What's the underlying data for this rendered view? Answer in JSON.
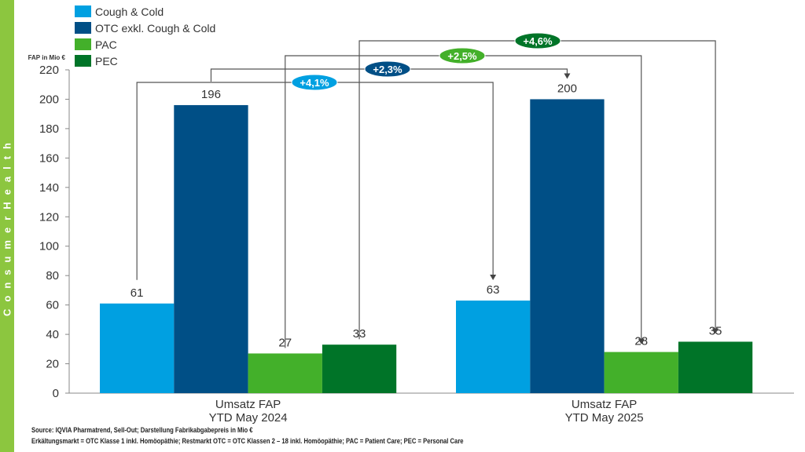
{
  "sidebar": {
    "label": "ConsumerHealth",
    "color": "#8cc63f"
  },
  "chart_data": {
    "type": "bar",
    "ylabel": "FAP in Mio €",
    "ylim": [
      0,
      220
    ],
    "yticks": [
      0,
      20,
      40,
      60,
      80,
      100,
      120,
      140,
      160,
      180,
      200,
      220
    ],
    "categories": [
      "Umsatz FAP\nYTD May 2024",
      "Umsatz FAP\nYTD May 2025"
    ],
    "series": [
      {
        "name": "Cough & Cold",
        "color": "#00a0e1",
        "values": [
          61,
          63
        ]
      },
      {
        "name": "OTC exkl. Cough & Cold",
        "color": "#004f86",
        "values": [
          196,
          200
        ]
      },
      {
        "name": "PAC",
        "color": "#43b02a",
        "values": [
          27,
          28
        ]
      },
      {
        "name": "PEC",
        "color": "#007428",
        "values": [
          33,
          35
        ]
      }
    ],
    "growth": [
      {
        "series": "Cough & Cold",
        "label": "+4,1%"
      },
      {
        "series": "OTC exkl. Cough & Cold",
        "label": "+2,3%"
      },
      {
        "series": "PAC",
        "label": "+2,5%"
      },
      {
        "series": "PEC",
        "label": "+4,6%"
      }
    ],
    "legend": "top-left",
    "grid": false
  },
  "footer": {
    "source": "Source: IQVIA Pharmatrend, Sell-Out; Darstellung Fabrikabgabepreis in Mio €",
    "note": "Erkältungsmarkt = OTC Klasse 1 inkl. Homöopäthie; Restmarkt OTC = OTC Klassen 2 – 18 inkl. Homöopäthie; PAC = Patient Care; PEC = Personal Care"
  }
}
